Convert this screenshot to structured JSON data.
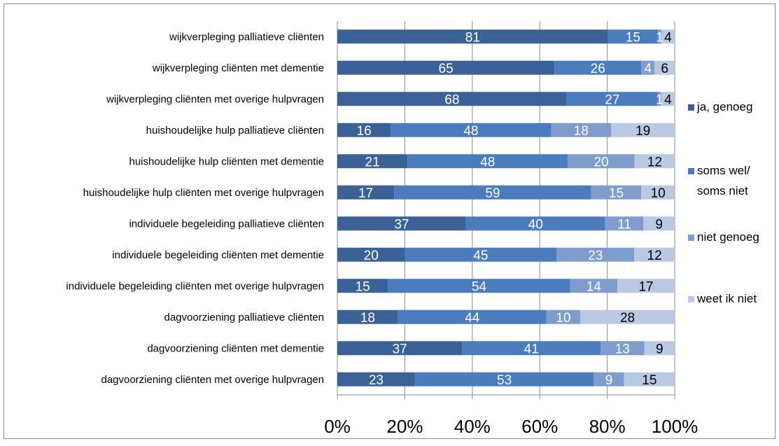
{
  "chart_data": {
    "type": "bar",
    "orientation": "horizontal",
    "stacked": "percent",
    "categories": [
      "wijkverpleging palliatieve cliënten",
      "wijkverpleging cliënten met dementie",
      "wijkverpleging cliënten met overige hulpvragen",
      "huishoudelijke hulp palliatieve cliënten",
      "huishoudelijke hulp cliënten met dementie",
      "huishoudelijke hulp cliënten met overige hulpvragen",
      "individuele begeleiding palliatieve cliënten",
      "individuele begeleiding cliënten met dementie",
      "individuele begeleiding cliënten met overige hulpvragen",
      "dagvoorziening palliatieve cliënten",
      "dagvoorziening cliënten met dementie",
      "dagvoorziening cliënten met overige hulpvragen"
    ],
    "series": [
      {
        "name": "ja, genoeg",
        "name_lines": [
          "ja, genoeg"
        ],
        "color": "#3b6296",
        "label_color": "#ffffff",
        "values": [
          81,
          65,
          68,
          16,
          21,
          17,
          37,
          20,
          15,
          18,
          37,
          23
        ]
      },
      {
        "name": "soms wel/ soms niet",
        "name_lines": [
          "soms wel/",
          "soms niet"
        ],
        "color": "#4a7cbe",
        "label_color": "#ffffff",
        "values": [
          15,
          26,
          27,
          48,
          48,
          59,
          40,
          45,
          54,
          44,
          41,
          53
        ]
      },
      {
        "name": "niet genoeg",
        "name_lines": [
          "niet genoeg"
        ],
        "color": "#7f9dcc",
        "label_color": "#ffffff",
        "values": [
          1,
          4,
          1,
          18,
          20,
          15,
          11,
          23,
          14,
          10,
          13,
          9
        ]
      },
      {
        "name": "weet ik niet",
        "name_lines": [
          "weet ik niet"
        ],
        "color": "#b9c9e2",
        "label_color": "#000000",
        "values": [
          4,
          6,
          4,
          19,
          12,
          10,
          9,
          12,
          17,
          28,
          9,
          15
        ]
      }
    ],
    "xticks": [
      "0%",
      "20%",
      "40%",
      "60%",
      "80%",
      "100%"
    ],
    "xlim": [
      0,
      100
    ],
    "grid": "vertical",
    "legend": "right",
    "title": "",
    "xlabel": "",
    "ylabel": ""
  }
}
